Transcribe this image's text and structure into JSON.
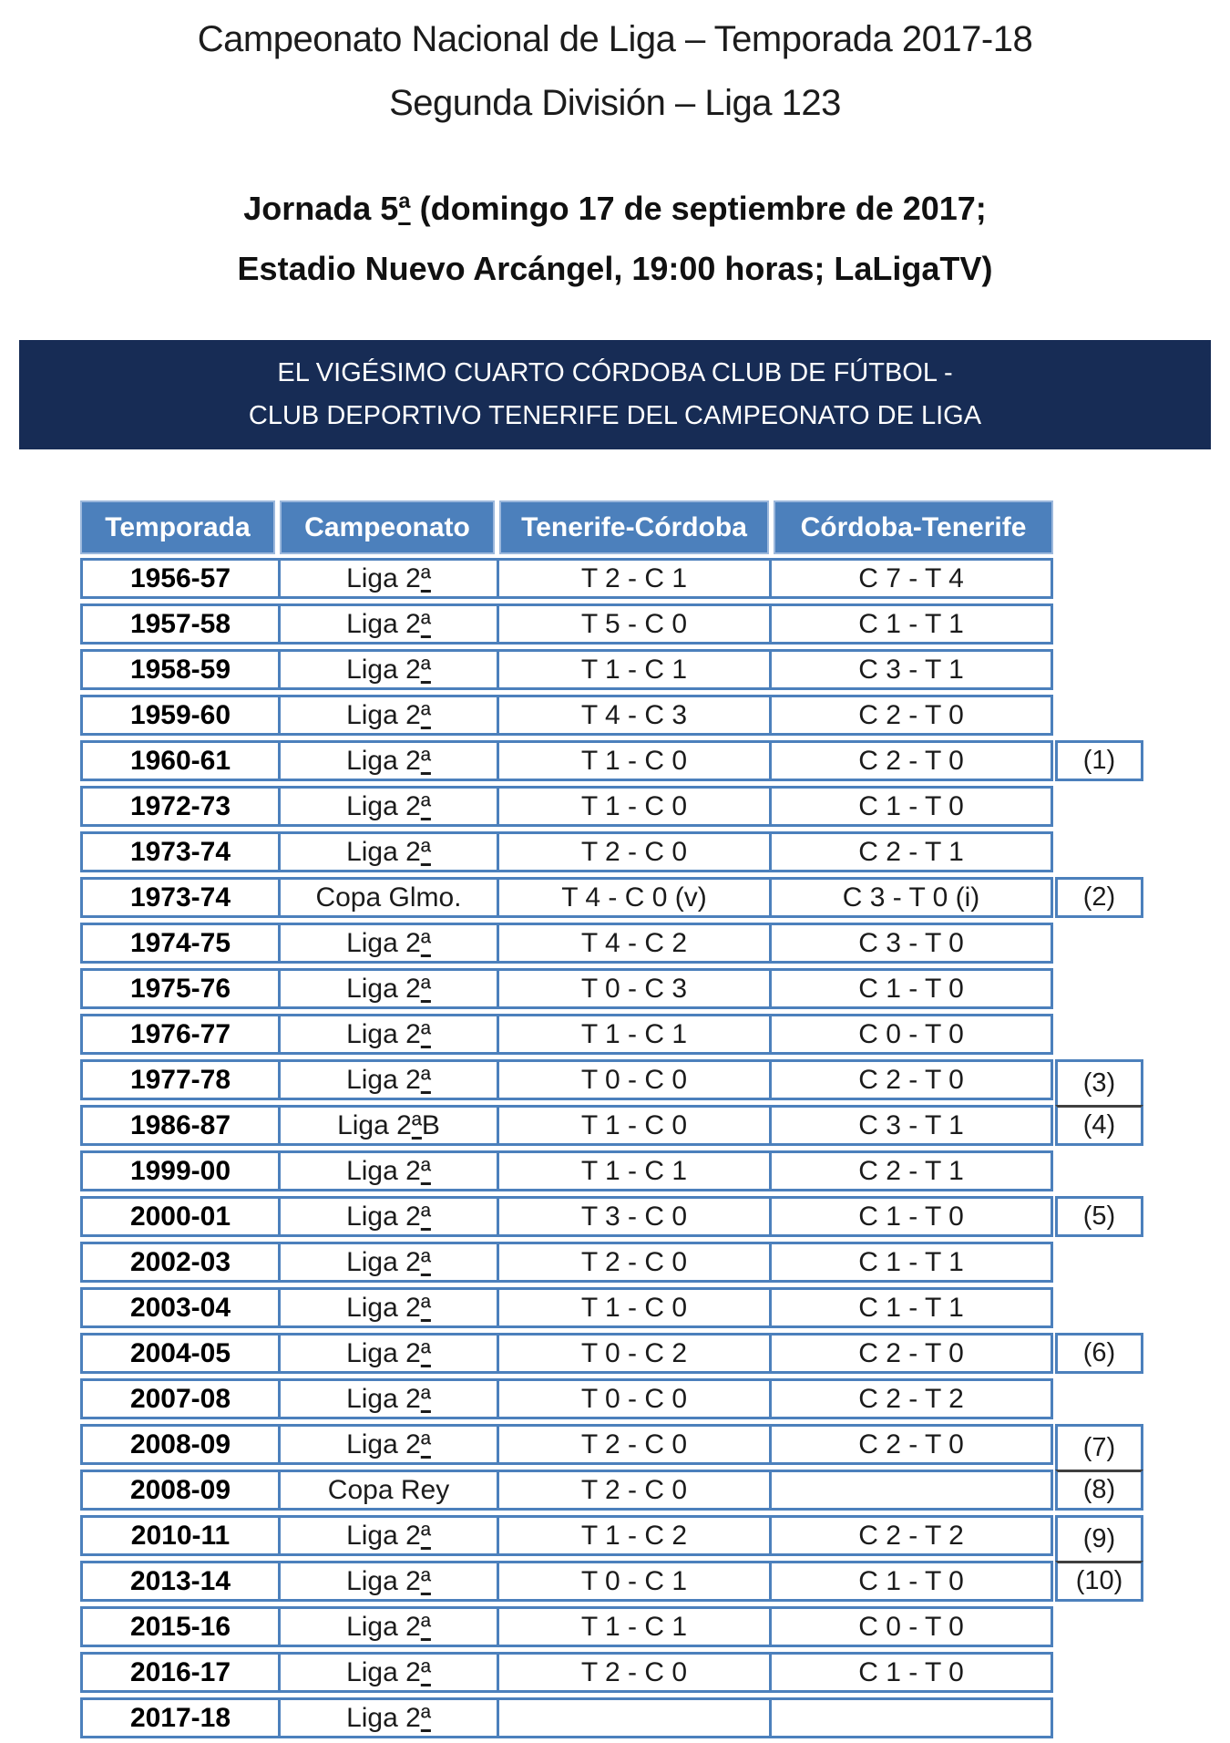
{
  "page": {
    "title_line1": "Campeonato Nacional de Liga – Temporada 2017-18",
    "title_line2": "Segunda División – Liga 123",
    "subtitle_line1": "Jornada 5ª (domingo 17 de septiembre de 2017;",
    "subtitle_line2": "Estadio Nuevo Arcángel, 19:00 horas; LaLigaTV)"
  },
  "banner": {
    "line1": "EL VIGÉSIMO CUARTO CÓRDOBA CLUB DE FÚTBOL -",
    "line2": "CLUB DEPORTIVO TENERIFE DEL CAMPEONATO DE LIGA",
    "bg_color": "#172C55",
    "text_color": "#FFFFFF"
  },
  "table": {
    "accent_color": "#4C80BC",
    "header_border_color": "#9CB8DC",
    "note_divider_color": "#3F3F3F",
    "columns": [
      "Temporada",
      "Campeonato",
      "Tenerife-Córdoba",
      "Córdoba-Tenerife"
    ],
    "rows": [
      {
        "temporada": "1956-57",
        "campeonato": "Liga 2ª",
        "tenerife_cordoba": "T 2 - C 1",
        "cordoba_tenerife": "C 7 - T 4",
        "note": ""
      },
      {
        "temporada": "1957-58",
        "campeonato": "Liga 2ª",
        "tenerife_cordoba": "T 5 - C 0",
        "cordoba_tenerife": "C 1 - T 1",
        "note": ""
      },
      {
        "temporada": "1958-59",
        "campeonato": "Liga 2ª",
        "tenerife_cordoba": "T 1 - C 1",
        "cordoba_tenerife": "C 3 - T 1",
        "note": ""
      },
      {
        "temporada": "1959-60",
        "campeonato": "Liga 2ª",
        "tenerife_cordoba": "T 4 - C 3",
        "cordoba_tenerife": "C 2 - T 0",
        "note": ""
      },
      {
        "temporada": "1960-61",
        "campeonato": "Liga 2ª",
        "tenerife_cordoba": "T 1 - C 0",
        "cordoba_tenerife": "C 2 - T 0",
        "note": "(1)"
      },
      {
        "temporada": "1972-73",
        "campeonato": "Liga 2ª",
        "tenerife_cordoba": "T 1 - C 0",
        "cordoba_tenerife": "C 1 - T 0",
        "note": ""
      },
      {
        "temporada": "1973-74",
        "campeonato": "Liga 2ª",
        "tenerife_cordoba": "T 2 - C 0",
        "cordoba_tenerife": "C 2 - T 1",
        "note": ""
      },
      {
        "temporada": "1973-74",
        "campeonato": "Copa Glmo.",
        "tenerife_cordoba": "T 4 - C 0 (v)",
        "cordoba_tenerife": "C 3 - T 0 (i)",
        "note": "(2)"
      },
      {
        "temporada": "1974-75",
        "campeonato": "Liga 2ª",
        "tenerife_cordoba": "T 4 - C 2",
        "cordoba_tenerife": "C 3 - T 0",
        "note": ""
      },
      {
        "temporada": "1975-76",
        "campeonato": "Liga 2ª",
        "tenerife_cordoba": "T 0 - C 3",
        "cordoba_tenerife": "C 1 - T 0",
        "note": ""
      },
      {
        "temporada": "1976-77",
        "campeonato": "Liga 2ª",
        "tenerife_cordoba": "T 1 - C 1",
        "cordoba_tenerife": "C 0 - T 0",
        "note": ""
      },
      {
        "temporada": "1977-78",
        "campeonato": "Liga 2ª",
        "tenerife_cordoba": "T 0 - C 0",
        "cordoba_tenerife": "C 2 - T 0",
        "note": "(3)",
        "note_joined_with_next": true
      },
      {
        "temporada": "1986-87",
        "campeonato": "Liga 2ªB",
        "tenerife_cordoba": "T 1 - C 0",
        "cordoba_tenerife": "C 3 - T 1",
        "note": "(4)"
      },
      {
        "temporada": "1999-00",
        "campeonato": "Liga 2ª",
        "tenerife_cordoba": "T 1 - C 1",
        "cordoba_tenerife": "C 2 - T 1",
        "note": ""
      },
      {
        "temporada": "2000-01",
        "campeonato": "Liga 2ª",
        "tenerife_cordoba": "T 3 - C 0",
        "cordoba_tenerife": "C 1 - T 0",
        "note": "(5)"
      },
      {
        "temporada": "2002-03",
        "campeonato": "Liga 2ª",
        "tenerife_cordoba": "T 2 - C 0",
        "cordoba_tenerife": "C 1 - T 1",
        "note": ""
      },
      {
        "temporada": "2003-04",
        "campeonato": "Liga 2ª",
        "tenerife_cordoba": "T 1 - C 0",
        "cordoba_tenerife": "C 1 - T 1",
        "note": ""
      },
      {
        "temporada": "2004-05",
        "campeonato": "Liga 2ª",
        "tenerife_cordoba": "T 0 - C 2",
        "cordoba_tenerife": "C 2 - T 0",
        "note": "(6)"
      },
      {
        "temporada": "2007-08",
        "campeonato": "Liga 2ª",
        "tenerife_cordoba": "T 0 - C 0",
        "cordoba_tenerife": "C 2 - T 2",
        "note": ""
      },
      {
        "temporada": "2008-09",
        "campeonato": "Liga 2ª",
        "tenerife_cordoba": "T 2 - C 0",
        "cordoba_tenerife": "C 2 - T 0",
        "note": "(7)",
        "note_joined_with_next": true
      },
      {
        "temporada": "2008-09",
        "campeonato": "Copa Rey",
        "tenerife_cordoba": "T 2 - C 0",
        "cordoba_tenerife": "",
        "note": "(8)"
      },
      {
        "temporada": "2010-11",
        "campeonato": "Liga 2ª",
        "tenerife_cordoba": "T 1 - C 2",
        "cordoba_tenerife": "C 2 - T 2",
        "note": "(9)",
        "note_joined_with_next": true
      },
      {
        "temporada": "2013-14",
        "campeonato": "Liga 2ª",
        "tenerife_cordoba": "T 0 - C 1",
        "cordoba_tenerife": "C 1 - T 0",
        "note": "(10)"
      },
      {
        "temporada": "2015-16",
        "campeonato": "Liga 2ª",
        "tenerife_cordoba": "T 1 - C 1",
        "cordoba_tenerife": "C 0 - T 0",
        "note": ""
      },
      {
        "temporada": "2016-17",
        "campeonato": "Liga 2ª",
        "tenerife_cordoba": "T 2 - C 0",
        "cordoba_tenerife": "C 1 - T 0",
        "note": ""
      },
      {
        "temporada": "2017-18",
        "campeonato": "Liga 2ª",
        "tenerife_cordoba": "",
        "cordoba_tenerife": "",
        "note": ""
      }
    ]
  }
}
